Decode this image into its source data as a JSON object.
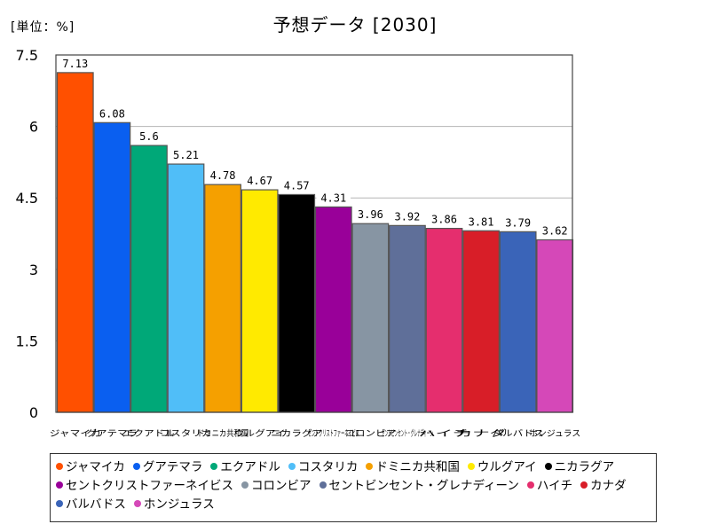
{
  "unit_label": "[単位：%]",
  "chart_data": {
    "type": "bar",
    "title": "予想データ [2030]",
    "xlabel": "",
    "ylabel": "",
    "ylim": [
      0,
      7.5
    ],
    "yticks": [
      "0",
      "1.5",
      "3",
      "4.5",
      "6",
      "7.5"
    ],
    "grid": true,
    "legend_position": "bottom",
    "categories": [
      "ジャマイカ",
      "グアテマラ",
      "エクアドル",
      "コスタリカ",
      "ドミニカ共和国",
      "ウルグアイ",
      "ニカラグア",
      "セントクリストファーネイビス",
      "コロンビア",
      "セントビンセント・グレナディーン",
      "ハイチ",
      "カナダ",
      "バルバドス",
      "ホンジュラス"
    ],
    "values": [
      7.13,
      6.08,
      5.6,
      5.21,
      4.78,
      4.67,
      4.57,
      4.31,
      3.96,
      3.92,
      3.86,
      3.81,
      3.79,
      3.62
    ],
    "value_labels": [
      "7.13",
      "6.08",
      "5.6",
      "5.21",
      "4.78",
      "4.67",
      "4.57",
      "4.31",
      "3.96",
      "3.92",
      "3.86",
      "3.81",
      "3.79",
      "3.62"
    ],
    "colors": [
      "#ff5000",
      "#0a5ff0",
      "#00a878",
      "#50bef8",
      "#f5a000",
      "#ffea00",
      "#000000",
      "#990099",
      "#8795a3",
      "#5f6f99",
      "#e52e6e",
      "#d81e28",
      "#3a64b8",
      "#d548b8"
    ]
  }
}
